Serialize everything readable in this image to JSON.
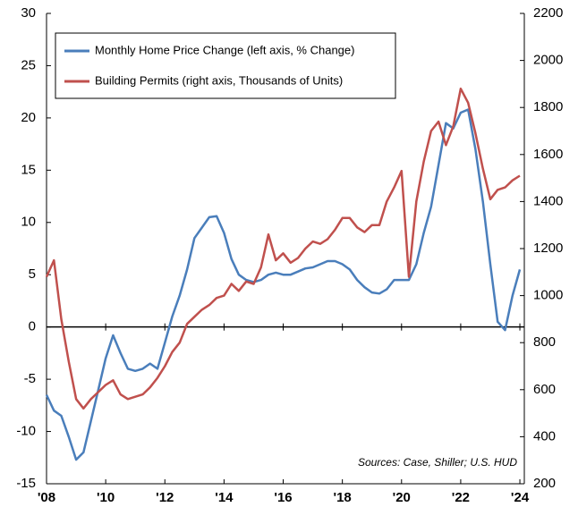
{
  "chart_data": {
    "type": "line",
    "x": [
      2008.0,
      2008.25,
      2008.5,
      2008.75,
      2009.0,
      2009.25,
      2009.5,
      2009.75,
      2010.0,
      2010.25,
      2010.5,
      2010.75,
      2011.0,
      2011.25,
      2011.5,
      2011.75,
      2012.0,
      2012.25,
      2012.5,
      2012.75,
      2013.0,
      2013.25,
      2013.5,
      2013.75,
      2014.0,
      2014.25,
      2014.5,
      2014.75,
      2015.0,
      2015.25,
      2015.5,
      2015.75,
      2016.0,
      2016.25,
      2016.5,
      2016.75,
      2017.0,
      2017.25,
      2017.5,
      2017.75,
      2018.0,
      2018.25,
      2018.5,
      2018.75,
      2019.0,
      2019.25,
      2019.5,
      2019.75,
      2020.0,
      2020.25,
      2020.5,
      2020.75,
      2021.0,
      2021.25,
      2021.5,
      2021.75,
      2022.0,
      2022.25,
      2022.5,
      2022.75,
      2023.0,
      2023.25,
      2023.5,
      2023.75,
      2024.0
    ],
    "series": [
      {
        "name": "Monthly Home Price Change (left axis, % Change)",
        "color": "#4a7ebb",
        "axis": "y",
        "values": [
          -6.5,
          -8,
          -8.5,
          -10.5,
          -12.7,
          -12,
          -9,
          -6,
          -3,
          -0.8,
          -2.5,
          -4,
          -4.2,
          -4,
          -3.5,
          -4,
          -1.5,
          1,
          3,
          5.5,
          8.5,
          9.5,
          10.5,
          10.6,
          9,
          6.5,
          5,
          4.5,
          4.3,
          4.5,
          5,
          5.2,
          5,
          5,
          5.3,
          5.6,
          5.7,
          6,
          6.3,
          6.3,
          6,
          5.5,
          4.5,
          3.8,
          3.3,
          3.2,
          3.6,
          4.5,
          4.5,
          4.5,
          6,
          9,
          11.5,
          15.5,
          19.5,
          19,
          20.5,
          20.8,
          17,
          12,
          6,
          0.5,
          -0.3,
          3,
          5.5
        ]
      },
      {
        "name": "Building Permits (right axis, Thousands of Units)",
        "color": "#c0504d",
        "axis": "y2",
        "values": [
          1080,
          1150,
          900,
          720,
          560,
          520,
          560,
          590,
          620,
          640,
          580,
          560,
          570,
          580,
          610,
          650,
          700,
          760,
          800,
          880,
          910,
          940,
          960,
          990,
          1000,
          1050,
          1020,
          1060,
          1050,
          1120,
          1260,
          1150,
          1180,
          1140,
          1160,
          1200,
          1230,
          1220,
          1240,
          1280,
          1330,
          1330,
          1290,
          1270,
          1300,
          1300,
          1400,
          1460,
          1530,
          1080,
          1400,
          1570,
          1700,
          1740,
          1640,
          1720,
          1880,
          1820,
          1690,
          1540,
          1410,
          1450,
          1460,
          1490,
          1510
        ]
      }
    ],
    "xlim": [
      2008,
      2024.15
    ],
    "xticks": [
      {
        "value": 2008,
        "label": "'08"
      },
      {
        "value": 2010,
        "label": "'10"
      },
      {
        "value": 2012,
        "label": "'12"
      },
      {
        "value": 2014,
        "label": "'14"
      },
      {
        "value": 2016,
        "label": "'16"
      },
      {
        "value": 2018,
        "label": "'18"
      },
      {
        "value": 2020,
        "label": "'20"
      },
      {
        "value": 2022,
        "label": "'22"
      },
      {
        "value": 2024,
        "label": "'24"
      }
    ],
    "ylim": [
      -15,
      30
    ],
    "yticks": [
      -15,
      -10,
      -5,
      0,
      5,
      10,
      15,
      20,
      25,
      30
    ],
    "y2lim": [
      200,
      2200
    ],
    "y2ticks": [
      200,
      400,
      600,
      800,
      1000,
      1200,
      1400,
      1600,
      1800,
      2000,
      2200
    ],
    "annotation": "Sources: Case, Shiller; U.S. HUD",
    "legend": "upper left"
  }
}
